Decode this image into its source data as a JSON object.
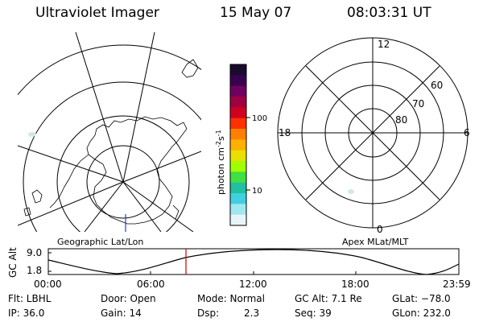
{
  "header": {
    "instrument": "Ultraviolet Imager",
    "date": "15 May 07",
    "time": "08:03:31 UT"
  },
  "colorbar": {
    "unit_label": "photon cm-2s-1",
    "tick_100": "100",
    "tick_10": "10",
    "colors": [
      "#1a0a2e",
      "#3a0050",
      "#700060",
      "#a00040",
      "#d00020",
      "#ff3000",
      "#ff8000",
      "#ffb000",
      "#e8e000",
      "#a0ff00",
      "#40e040",
      "#20c0a0",
      "#40d0e0",
      "#a0e8f0",
      "#e8f4f8"
    ]
  },
  "left_map": {
    "caption": "Geographic Lat/Lon"
  },
  "right_map": {
    "caption": "Apex MLat/MLT",
    "mlt_labels": {
      "top": "12",
      "left": "18",
      "right": "6",
      "bottom": "0"
    },
    "lat_labels": {
      "60": "60",
      "70": "70",
      "80": "80"
    }
  },
  "altitude_plot": {
    "ylabel": "GC Alt",
    "yticks": [
      "9.0",
      "1.8"
    ],
    "xticks": [
      "00:00",
      "06:00",
      "12:00",
      "18:00",
      "23:59"
    ],
    "current_marker_color": "#cc0000"
  },
  "info": {
    "flt_label": "Flt: LBHL",
    "door_label": "Door: Open",
    "mode_label": "Mode: Normal",
    "gcalt_label": "GC Alt: 7.1 Re",
    "glat_label": "GLat: −78.0",
    "ip_label": "IP: 36.0",
    "gain_label": "Gain: 14",
    "dsp_label": "Dsp:",
    "dsp_value": "2.3",
    "seq_label": "Seq: 39",
    "glon_label": "GLon: 232.0"
  }
}
